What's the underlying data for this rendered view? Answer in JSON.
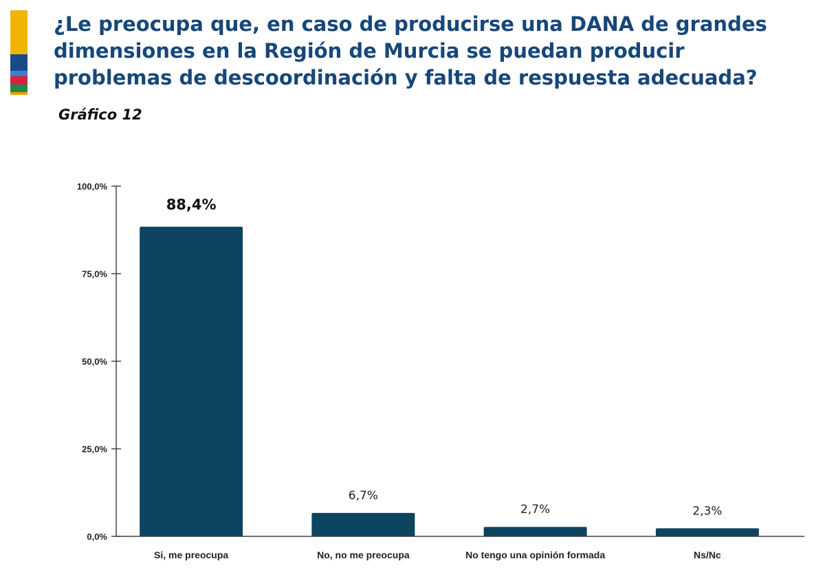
{
  "header": {
    "title": "¿Le preocupa que, en caso de producirse una DANA de grandes dimensiones en la Región de Murcia se puedan producir problemas de descoordinación y falta de respuesta adecuada?",
    "subtitle": "Gráfico 12",
    "logo_colors": [
      "#f0b400",
      "#1a4a86",
      "#3b7fd0",
      "#d8213f",
      "#1f8a4a",
      "#e8a000"
    ]
  },
  "chart_data": {
    "type": "bar",
    "categories": [
      "Si, me preocupa",
      "No, no me preocupa",
      "No tengo una opinión formada",
      "Ns/Nc"
    ],
    "values": [
      88.4,
      6.7,
      2.7,
      2.3
    ],
    "data_labels": [
      "88,4%",
      "6,7%",
      "2,7%",
      "2,3%"
    ],
    "yticks": [
      "0,0%",
      "25,0%",
      "50,0%",
      "75,0%",
      "100,0%"
    ],
    "ylim": [
      0,
      100
    ],
    "bar_color": "#0d4560",
    "grid": false,
    "legend": "none"
  }
}
